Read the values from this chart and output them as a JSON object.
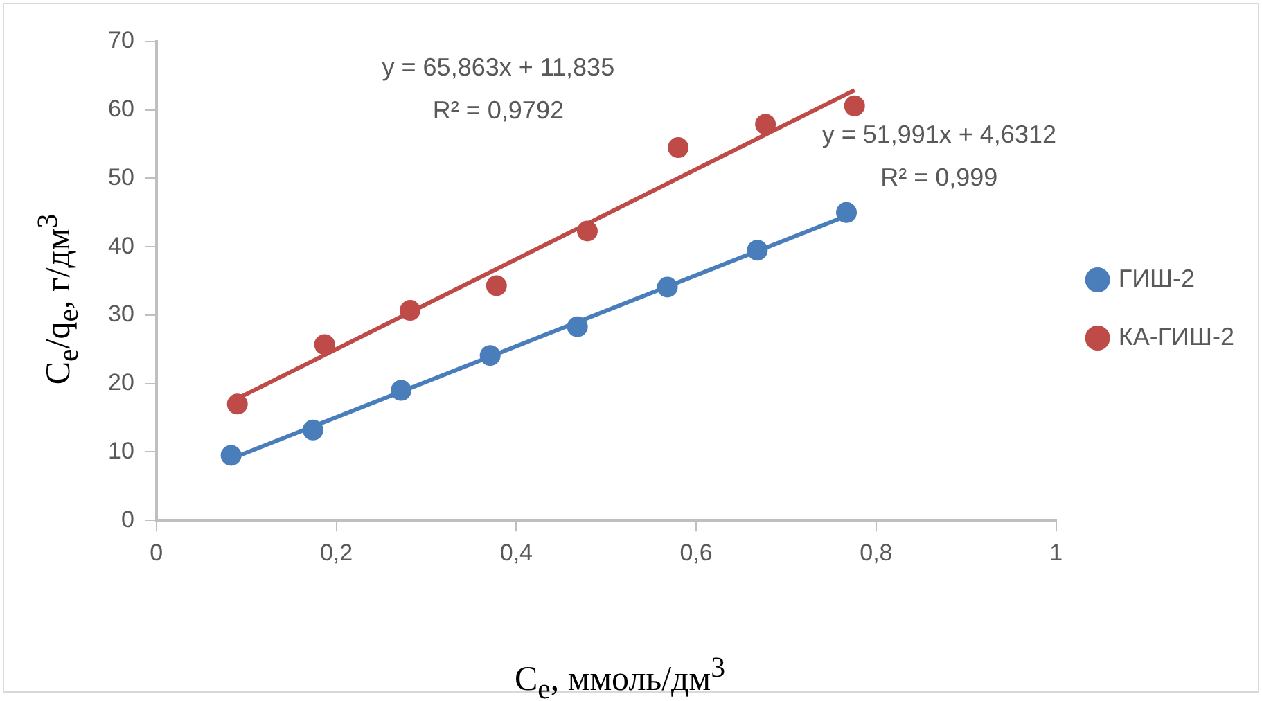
{
  "chart_data": {
    "type": "scatter",
    "xlabel": "C$_{e}$, ммоль/дм$^{3}$",
    "ylabel": "C$_{e}$/q$_{e}$, г/дм$^{3}$",
    "xlim": [
      0,
      1
    ],
    "xticks": [
      0,
      {
        "value": 0.2,
        "label": "0,2"
      },
      {
        "value": 0.4,
        "label": "0,4"
      },
      {
        "value": 0.6,
        "label": "0,6"
      },
      {
        "value": 0.8,
        "label": "0,8"
      },
      1
    ],
    "ylim": [
      0,
      70
    ],
    "yticks": [
      0,
      10,
      20,
      30,
      40,
      50,
      60,
      70
    ],
    "series": [
      {
        "name": "ГИШ-2",
        "color": "#4a7ebb",
        "x": [
          0.083,
          0.174,
          0.272,
          0.371,
          0.468,
          0.568,
          0.668,
          0.767
        ],
        "values": [
          9.5,
          13.2,
          19.0,
          24.1,
          28.3,
          34.1,
          39.5,
          45.0
        ]
      },
      {
        "name": "КА-ГИШ-2",
        "color": "#be4b48",
        "x": [
          0.09,
          0.187,
          0.282,
          0.378,
          0.479,
          0.58,
          0.677,
          0.776
        ],
        "values": [
          17.0,
          25.7,
          30.7,
          34.3,
          42.3,
          54.5,
          57.9,
          60.6
        ]
      },
      {
        "type": "line",
        "color": "#4a7ebb",
        "x": [
          0.083,
          0.767
        ],
        "values": [
          9.0,
          44.5
        ],
        "marker": "none"
      },
      {
        "type": "line",
        "color": "#be4b48",
        "x": [
          0.09,
          0.776
        ],
        "values": [
          17.8,
          62.9
        ],
        "marker": "none"
      }
    ],
    "annotations": [
      "y = 65,863x + 11,835\nR² = 0,9792",
      "y = 51,991x + 4,6312\nR² = 0,999"
    ],
    "marker": "circle",
    "grid": false,
    "legend": "right"
  }
}
